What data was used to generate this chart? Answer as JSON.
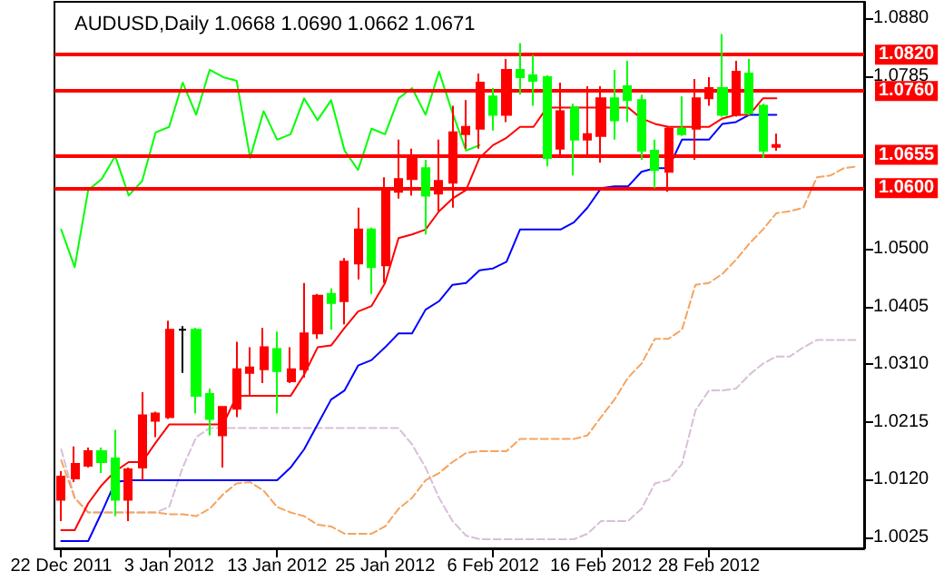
{
  "chart_data": {
    "type": "candlestick",
    "title": "AUDUSD,Daily 1.0668 1.0690 1.0662 1.0671",
    "marker": "none",
    "categories": [
      "22 Dec 2011",
      null,
      null,
      null,
      null,
      null,
      null,
      null,
      "3 Jan 2012",
      null,
      null,
      null,
      null,
      null,
      null,
      null,
      "13 Jan 2012",
      null,
      null,
      null,
      null,
      null,
      null,
      null,
      "25 Jan 2012",
      null,
      null,
      null,
      null,
      null,
      null,
      null,
      "6 Feb 2012",
      null,
      null,
      null,
      null,
      null,
      null,
      null,
      "16 Feb 2012",
      null,
      null,
      null,
      null,
      null,
      null,
      null,
      "28 Feb 2012",
      null,
      null,
      null,
      null,
      null,
      null,
      null,
      null,
      null,
      null,
      null
    ],
    "ylim": [
      1.0007,
      1.0907
    ],
    "yticks": [
      1.0025,
      {
        "value": 1.012,
        "label": "1.0120"
      },
      1.0215,
      {
        "value": 1.031,
        "label": "1.0310"
      },
      1.0405,
      {
        "value": 1.05,
        "label": "1.0500"
      },
      1.0785,
      {
        "value": 1.088,
        "label": "1.0880"
      }
    ],
    "ref_lines": [
      {
        "axis": "y",
        "value": 1.082,
        "label": "1.0820",
        "color": "#ff0000"
      },
      {
        "axis": "y",
        "value": 1.076,
        "label": "1.0760",
        "color": "#ff0000"
      },
      {
        "axis": "y",
        "value": 1.0655,
        "label": "1.0655",
        "color": "#ff0000"
      },
      {
        "axis": "y",
        "value": 1.06,
        "label": "1.0600",
        "color": "#ff0000"
      }
    ],
    "series": [
      {
        "type": "candlestick",
        "ohlc": [
          [
            1.0087,
            1.0134,
            1.0052,
            1.0125
          ],
          [
            1.0122,
            1.0175,
            1.0116,
            1.0146
          ],
          [
            1.0143,
            1.0173,
            1.014,
            1.0167
          ],
          [
            1.0167,
            1.0173,
            1.0131,
            1.0149
          ],
          [
            1.0155,
            1.0202,
            1.006,
            1.0087
          ],
          [
            1.0087,
            1.014,
            1.0052,
            1.0137
          ],
          [
            1.014,
            1.0264,
            1.0119,
            1.0226
          ],
          [
            1.0217,
            1.0232,
            1.019,
            1.0229
          ],
          [
            1.0223,
            1.0382,
            1.022,
            1.0367
          ],
          [
            1.0367,
            1.0373,
            1.0296,
            1.0367
          ],
          [
            1.0367,
            1.037,
            1.0229,
            1.0258
          ],
          [
            1.0261,
            1.027,
            1.0193,
            1.022
          ],
          [
            1.0193,
            1.024,
            1.014,
            1.024
          ],
          [
            1.0237,
            1.0347,
            1.0223,
            1.0302
          ],
          [
            1.0296,
            1.0338,
            1.0258,
            1.0305
          ],
          [
            1.0302,
            1.037,
            1.0279,
            1.0338
          ],
          [
            1.0335,
            1.0364,
            1.0229,
            1.0299
          ],
          [
            1.0282,
            1.0338,
            1.0279,
            1.0302
          ],
          [
            1.0302,
            1.0444,
            1.0288,
            1.0361
          ],
          [
            1.0361,
            1.0426,
            1.0352,
            1.0423
          ],
          [
            1.0426,
            1.0435,
            1.0367,
            1.0411
          ],
          [
            1.0414,
            1.0485,
            1.0376,
            1.0479
          ],
          [
            1.0476,
            1.0568,
            1.045,
            1.0532
          ],
          [
            1.0532,
            1.0535,
            1.0426,
            1.047
          ],
          [
            1.0473,
            1.0618,
            1.0444,
            1.0597
          ],
          [
            1.0594,
            1.068,
            1.0583,
            1.0615
          ],
          [
            1.0615,
            1.0665,
            1.0588,
            1.0653
          ],
          [
            1.0633,
            1.0647,
            1.0524,
            1.0588
          ],
          [
            1.0591,
            1.068,
            1.0562,
            1.0612
          ],
          [
            1.0609,
            1.0736,
            1.0568,
            1.0692
          ],
          [
            1.0689,
            1.0745,
            1.0665,
            1.0701
          ],
          [
            1.0698,
            1.0789,
            1.0665,
            1.0774
          ],
          [
            1.0751,
            1.0765,
            1.0695,
            1.0721
          ],
          [
            1.0721,
            1.0813,
            1.0709,
            1.0795
          ],
          [
            1.0795,
            1.0839,
            1.0754,
            1.0783
          ],
          [
            1.0786,
            1.0819,
            1.0736,
            1.0777
          ],
          [
            1.0783,
            1.0786,
            1.0636,
            1.065
          ],
          [
            1.0665,
            1.0774,
            1.0656,
            1.0727
          ],
          [
            1.0733,
            1.0739,
            1.0621,
            1.068
          ],
          [
            1.068,
            1.0768,
            1.0656,
            1.0689
          ],
          [
            1.0686,
            1.0768,
            1.0642,
            1.0748
          ],
          [
            1.0748,
            1.0795,
            1.068,
            1.0712
          ],
          [
            1.0768,
            1.081,
            1.0709,
            1.0745
          ],
          [
            1.0745,
            1.0754,
            1.0647,
            1.0662
          ],
          [
            1.0662,
            1.068,
            1.06,
            1.063
          ],
          [
            1.0627,
            1.0701,
            1.0594,
            1.0698
          ],
          [
            1.0698,
            1.0751,
            1.0686,
            1.0689
          ],
          [
            1.0698,
            1.078,
            1.0647,
            1.0748
          ],
          [
            1.0748,
            1.0783,
            1.0736,
            1.0765
          ],
          [
            1.0765,
            1.0854,
            1.0718,
            1.0721
          ],
          [
            1.0721,
            1.081,
            1.0718,
            1.0792
          ],
          [
            1.0789,
            1.0813,
            1.072,
            1.0724
          ],
          [
            1.0736,
            1.0739,
            1.065,
            1.0662
          ],
          [
            1.0668,
            1.069,
            1.0662,
            1.0671
          ],
          null,
          null,
          null,
          null,
          null,
          null
        ],
        "colors": [
          "#ff0000",
          "#ff0000",
          "#ff0000",
          "#00ff00",
          "#00ff00",
          "#ff0000",
          "#ff0000",
          "#ff0000",
          "#ff0000",
          "#000000",
          "#00ff00",
          "#00ff00",
          "#ff0000",
          "#ff0000",
          "#ff0000",
          "#ff0000",
          "#00ff00",
          "#ff0000",
          "#ff0000",
          "#ff0000",
          "#00ff00",
          "#ff0000",
          "#ff0000",
          "#00ff00",
          "#ff0000",
          "#ff0000",
          "#ff0000",
          "#00ff00",
          "#ff0000",
          "#ff0000",
          "#ff0000",
          "#ff0000",
          "#00ff00",
          "#ff0000",
          "#00ff00",
          "#00ff00",
          "#00ff00",
          "#ff0000",
          "#00ff00",
          "#ff0000",
          "#ff0000",
          "#00ff00",
          "#00ff00",
          "#00ff00",
          "#00ff00",
          "#ff0000",
          "#00ff00",
          "#ff0000",
          "#ff0000",
          "#00ff00",
          "#ff0000",
          "#00ff00",
          "#00ff00",
          "#ff0000",
          null,
          null,
          null,
          null,
          null,
          null
        ]
      },
      {
        "type": "line",
        "color": "#d8bfd8",
        "line_style": "dashed",
        "values": [
          1.017,
          1.009,
          1.0066,
          1.0066,
          1.0066,
          1.0066,
          1.0066,
          1.0066,
          1.0075,
          1.014,
          1.019,
          1.0205,
          1.0205,
          1.0205,
          1.0205,
          1.0205,
          1.0205,
          1.0205,
          1.0205,
          1.0205,
          1.0205,
          1.0205,
          1.0205,
          1.0205,
          1.0205,
          1.0205,
          1.0178,
          1.014,
          1.009,
          1.0052,
          1.0028,
          1.0022,
          1.0022,
          1.0022,
          1.0022,
          1.0022,
          1.0022,
          1.0022,
          1.0022,
          1.0031,
          1.0052,
          1.0052,
          1.0052,
          1.0072,
          1.0114,
          1.0119,
          1.0146,
          1.0234,
          1.0267,
          1.0267,
          1.027,
          1.0293,
          1.0311,
          1.0323,
          1.0323,
          1.0338,
          1.035,
          1.035,
          1.035,
          1.035
        ]
      },
      {
        "type": "line",
        "color": "#f4a460",
        "line_style": "dashed",
        "values": [
          1.0152,
          1.009,
          1.0066,
          1.0066,
          1.0066,
          1.0066,
          1.0066,
          1.0066,
          1.0063,
          1.0063,
          1.006,
          1.0072,
          1.0096,
          1.0114,
          1.0116,
          1.0102,
          1.0075,
          1.0066,
          1.006,
          1.0046,
          1.0043,
          1.0031,
          1.0031,
          1.0031,
          1.0043,
          1.0072,
          1.009,
          1.0119,
          1.0131,
          1.0149,
          1.0164,
          1.0167,
          1.0167,
          1.0167,
          1.0187,
          1.0187,
          1.0187,
          1.0187,
          1.0187,
          1.0193,
          1.0223,
          1.0252,
          1.0288,
          1.0311,
          1.0352,
          1.0352,
          1.0367,
          1.0441,
          1.0444,
          1.0459,
          1.0482,
          1.0509,
          1.0532,
          1.0559,
          1.0562,
          1.0568,
          1.0618,
          1.0621,
          1.0633,
          1.0636
        ]
      },
      {
        "type": "line",
        "color": "#0000ff",
        "line_style": "solid",
        "values": [
          1.0019,
          1.0019,
          1.0019,
          1.0066,
          1.0116,
          1.0119,
          1.0119,
          1.0119,
          1.0119,
          1.0119,
          1.0119,
          1.0119,
          1.0119,
          1.0119,
          1.0119,
          1.0119,
          1.0119,
          1.014,
          1.017,
          1.0211,
          1.0252,
          1.0267,
          1.0308,
          1.0317,
          1.0338,
          1.0361,
          1.0361,
          1.04,
          1.0414,
          1.0441,
          1.0444,
          1.0465,
          1.0468,
          1.0479,
          1.0532,
          1.0532,
          1.0532,
          1.0532,
          1.0544,
          1.0568,
          1.06,
          1.0603,
          1.0603,
          1.0627,
          1.0633,
          1.0633,
          1.068,
          1.068,
          1.068,
          1.0706,
          1.0709,
          1.0721,
          1.0721,
          1.0721,
          null,
          null,
          null,
          null,
          null,
          null
        ]
      },
      {
        "type": "line",
        "color": "#ff0000",
        "line_style": "solid",
        "values": [
          1.0037,
          1.0037,
          1.0081,
          1.0111,
          1.0134,
          1.0149,
          1.0149,
          1.0181,
          1.0211,
          1.0211,
          1.0211,
          1.0211,
          1.0211,
          1.0258,
          1.0258,
          1.0258,
          1.0258,
          1.0258,
          1.0293,
          1.0338,
          1.0341,
          1.037,
          1.0397,
          1.0406,
          1.0444,
          1.0518,
          1.0524,
          1.0532,
          1.0562,
          1.0583,
          1.0597,
          1.065,
          1.0671,
          1.0683,
          1.0701,
          1.0701,
          1.0733,
          1.0733,
          1.0733,
          1.0733,
          1.0733,
          1.0733,
          1.0733,
          1.0715,
          1.0706,
          1.0701,
          1.0701,
          1.0701,
          1.0701,
          1.0715,
          1.0721,
          1.0721,
          1.0748,
          1.0748,
          null,
          null,
          null,
          null,
          null,
          null
        ]
      },
      {
        "type": "line",
        "color": "#00ff00",
        "line_style": "solid",
        "values": [
          1.0532,
          1.047,
          1.0597,
          1.0615,
          1.0653,
          1.0588,
          1.0612,
          1.0692,
          1.0701,
          1.0774,
          1.0721,
          1.0795,
          1.0783,
          1.0777,
          1.065,
          1.0727,
          1.068,
          1.0689,
          1.0748,
          1.0712,
          1.0745,
          1.0662,
          1.063,
          1.0698,
          1.0689,
          1.0748,
          1.0765,
          1.0721,
          1.0792,
          1.0724,
          1.0662,
          1.0671,
          null,
          null,
          null,
          null,
          null,
          null,
          null,
          null,
          null,
          null,
          null,
          null,
          null,
          null,
          null,
          null,
          null,
          null,
          null,
          null,
          null,
          null,
          null,
          null,
          null,
          null,
          null,
          null
        ]
      }
    ]
  }
}
